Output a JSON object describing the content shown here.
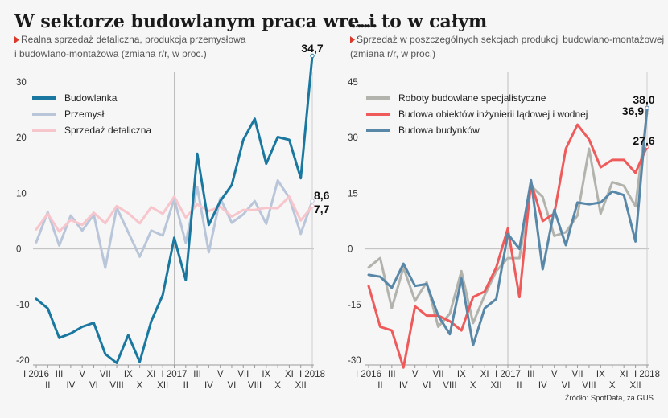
{
  "source": "Źródło: SpotData, za GUS",
  "chart_data": [
    {
      "type": "line",
      "title": "W sektorze budowlanym praca wre...",
      "subtitle_lines": [
        "Realna sprzedaż detaliczna, produkcja przemysłowa",
        "i budowlano-montażowa (zmiana r/r, w proc.)"
      ],
      "ylim": [
        -20,
        35
      ],
      "yticks": [
        30,
        20,
        10,
        0,
        -10,
        -20
      ],
      "xticks_top": [
        {
          "i": 0,
          "label": "I 2016"
        },
        {
          "i": 2,
          "label": "III"
        },
        {
          "i": 4,
          "label": "V"
        },
        {
          "i": 6,
          "label": "VII"
        },
        {
          "i": 8,
          "label": "IX"
        },
        {
          "i": 10,
          "label": "XI"
        },
        {
          "i": 12,
          "label": "I 2017"
        },
        {
          "i": 14,
          "label": "III"
        },
        {
          "i": 16,
          "label": "V"
        },
        {
          "i": 18,
          "label": "VII"
        },
        {
          "i": 20,
          "label": "IX"
        },
        {
          "i": 22,
          "label": "XI"
        },
        {
          "i": 24,
          "label": "I 2018"
        }
      ],
      "xticks_bottom": [
        {
          "i": 1,
          "label": "II"
        },
        {
          "i": 3,
          "label": "IV"
        },
        {
          "i": 5,
          "label": "VI"
        },
        {
          "i": 7,
          "label": "VIII"
        },
        {
          "i": 9,
          "label": "X"
        },
        {
          "i": 11,
          "label": "XII"
        },
        {
          "i": 13,
          "label": "II"
        },
        {
          "i": 15,
          "label": "IV"
        },
        {
          "i": 17,
          "label": "VI"
        },
        {
          "i": 19,
          "label": "VIII"
        },
        {
          "i": 21,
          "label": "X"
        },
        {
          "i": 23,
          "label": "XII"
        }
      ],
      "series": [
        {
          "name": "Przemysł",
          "color": "#b9c6da",
          "values": [
            1.2,
            6.6,
            0.6,
            6.0,
            3.3,
            6.2,
            -3.4,
            7.4,
            3.0,
            -1.4,
            3.3,
            2.4,
            9.0,
            1.1,
            11.1,
            -0.6,
            9.1,
            4.7,
            6.2,
            8.6,
            4.5,
            12.3,
            9.2,
            2.7,
            8.6
          ]
        },
        {
          "name": "Sprzedaż detaliczna",
          "color": "#f7c6cc",
          "values": [
            3.5,
            6.3,
            3.1,
            5.2,
            4.3,
            6.5,
            4.6,
            7.7,
            6.4,
            4.6,
            7.5,
            6.3,
            9.4,
            5.6,
            8.0,
            6.8,
            7.6,
            5.8,
            7.0,
            7.0,
            7.4,
            7.3,
            9.4,
            5.1,
            7.7
          ]
        },
        {
          "name": "Budowlanka",
          "color": "#1a78a0",
          "values": [
            -9.0,
            -10.7,
            -16.0,
            -15.2,
            -14.0,
            -13.3,
            -18.9,
            -20.5,
            -15.5,
            -20.3,
            -13.0,
            -8.3,
            2.0,
            -5.6,
            17.1,
            4.3,
            8.6,
            11.5,
            19.6,
            23.4,
            15.3,
            20.1,
            19.6,
            12.7,
            34.7
          ]
        }
      ],
      "legend_order": [
        "Budowlanka",
        "Przemysł",
        "Sprzedaż detaliczna"
      ],
      "end_labels": [
        "34,7",
        "8,6",
        "7,7"
      ]
    },
    {
      "type": "line",
      "title": "...i to w całym",
      "subtitle_lines": [
        "Sprzedaż w poszczególnych sekcjach produkcji budowlano-montażowej",
        "(zmiana r/r, w proc.)"
      ],
      "ylim": [
        -30,
        45
      ],
      "yticks": [
        45,
        30,
        15,
        0,
        -15,
        -30
      ],
      "xticks_top": [
        {
          "i": 0,
          "label": "I 2016"
        },
        {
          "i": 2,
          "label": "III"
        },
        {
          "i": 4,
          "label": "V"
        },
        {
          "i": 6,
          "label": "VII"
        },
        {
          "i": 8,
          "label": "IX"
        },
        {
          "i": 10,
          "label": "XI"
        },
        {
          "i": 12,
          "label": "I 2017"
        },
        {
          "i": 14,
          "label": "III"
        },
        {
          "i": 16,
          "label": "V"
        },
        {
          "i": 18,
          "label": "VII"
        },
        {
          "i": 20,
          "label": "IX"
        },
        {
          "i": 22,
          "label": "XI"
        },
        {
          "i": 24,
          "label": "I 2018"
        }
      ],
      "xticks_bottom": [
        {
          "i": 1,
          "label": "II"
        },
        {
          "i": 3,
          "label": "IV"
        },
        {
          "i": 5,
          "label": "VI"
        },
        {
          "i": 7,
          "label": "VIII"
        },
        {
          "i": 9,
          "label": "X"
        },
        {
          "i": 11,
          "label": "XII"
        },
        {
          "i": 13,
          "label": "II"
        },
        {
          "i": 15,
          "label": "IV"
        },
        {
          "i": 17,
          "label": "VI"
        },
        {
          "i": 19,
          "label": "VIII"
        },
        {
          "i": 21,
          "label": "X"
        },
        {
          "i": 23,
          "label": "XII"
        }
      ],
      "series": [
        {
          "name": "Roboty budowlane specjalistyczne",
          "color": "#b3b3ad",
          "values": [
            -5.0,
            -2.5,
            -16.0,
            -5.0,
            -14.0,
            -9.0,
            -21.0,
            -17.5,
            -6.0,
            -20.0,
            -12.5,
            -6.0,
            -2.5,
            -2.5,
            17.0,
            14.0,
            3.5,
            4.5,
            9.0,
            27.0,
            9.5,
            18.0,
            17.0,
            11.5,
            36.9
          ]
        },
        {
          "name": "Budowa obiektów inżynierii lądowej i wodnej",
          "color": "#ef5b5b",
          "values": [
            -10.0,
            -21.0,
            -22.0,
            -32.0,
            -15.5,
            -18.0,
            -18.0,
            -19.5,
            -22.0,
            -13.0,
            -11.5,
            -5.0,
            5.5,
            -13.0,
            18.0,
            7.5,
            9.5,
            27.0,
            33.5,
            29.5,
            22.0,
            24.0,
            24.0,
            20.5,
            27.6
          ]
        },
        {
          "name": "Budowa budynków",
          "color": "#5887a8",
          "values": [
            -7.0,
            -7.5,
            -10.5,
            -4.0,
            -10.0,
            -9.5,
            -18.0,
            -23.0,
            -8.0,
            -26.0,
            -16.0,
            -13.5,
            4.0,
            0.0,
            18.5,
            -5.5,
            10.5,
            1.0,
            12.5,
            12.0,
            12.5,
            15.5,
            14.5,
            2.0,
            38.0
          ]
        }
      ],
      "legend_order": [
        "Roboty budowlane specjalistyczne",
        "Budowa obiektów inżynierii lądowej i wodnej",
        "Budowa budynków"
      ],
      "end_labels": [
        "38,0",
        "36,9",
        "27,6"
      ]
    }
  ]
}
